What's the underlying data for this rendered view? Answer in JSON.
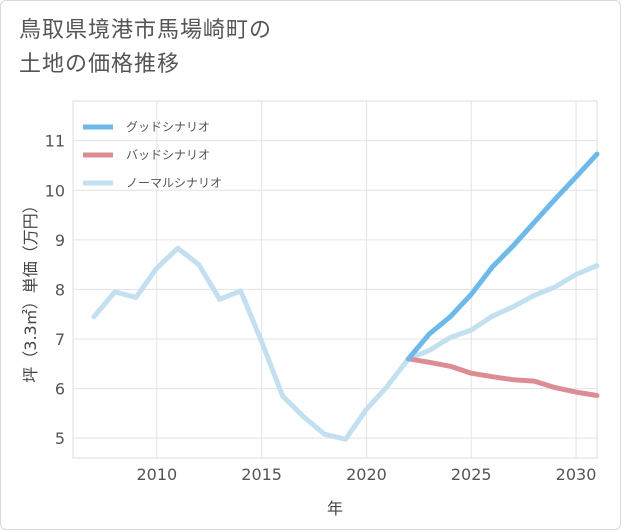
{
  "title": {
    "line1": "鳥取県境港市馬場崎町の",
    "line2": "土地の価格推移"
  },
  "chart_data": {
    "type": "line",
    "xlabel": "年",
    "ylabel": "坪（3.3㎡）単価（万円）",
    "xlim": [
      2006,
      2031
    ],
    "ylim": [
      4.6,
      11.8
    ],
    "xticks": [
      2010,
      2015,
      2020,
      2025,
      2030
    ],
    "yticks": [
      5,
      6,
      7,
      8,
      9,
      10,
      11
    ],
    "legend_position": "top-left",
    "series": [
      {
        "name": "グッドシナリオ",
        "color": "#6cb9ea",
        "x": [
          2022,
          2023,
          2024,
          2025,
          2026,
          2027,
          2028,
          2029,
          2030,
          2031
        ],
        "values": [
          6.6,
          7.1,
          7.45,
          7.9,
          8.45,
          8.88,
          9.35,
          9.82,
          10.27,
          10.73
        ]
      },
      {
        "name": "バッドシナリオ",
        "color": "#dc8d93",
        "x": [
          2022,
          2023,
          2024,
          2025,
          2026,
          2027,
          2028,
          2029,
          2030,
          2031
        ],
        "values": [
          6.6,
          6.53,
          6.45,
          6.31,
          6.24,
          6.18,
          6.15,
          6.02,
          5.93,
          5.86
        ]
      },
      {
        "name": "ノーマルシナリオ",
        "color": "#c2e0ef",
        "x": [
          2007,
          2008,
          2009,
          2010,
          2011,
          2012,
          2013,
          2014,
          2015,
          2016,
          2017,
          2018,
          2019,
          2020,
          2021,
          2022,
          2023,
          2024,
          2025,
          2026,
          2027,
          2028,
          2029,
          2030,
          2031
        ],
        "values": [
          7.45,
          7.95,
          7.84,
          8.43,
          8.83,
          8.5,
          7.8,
          7.97,
          6.95,
          5.85,
          5.43,
          5.08,
          4.98,
          5.58,
          6.05,
          6.6,
          6.77,
          7.03,
          7.18,
          7.46,
          7.65,
          7.88,
          8.05,
          8.3,
          8.48
        ]
      }
    ]
  }
}
